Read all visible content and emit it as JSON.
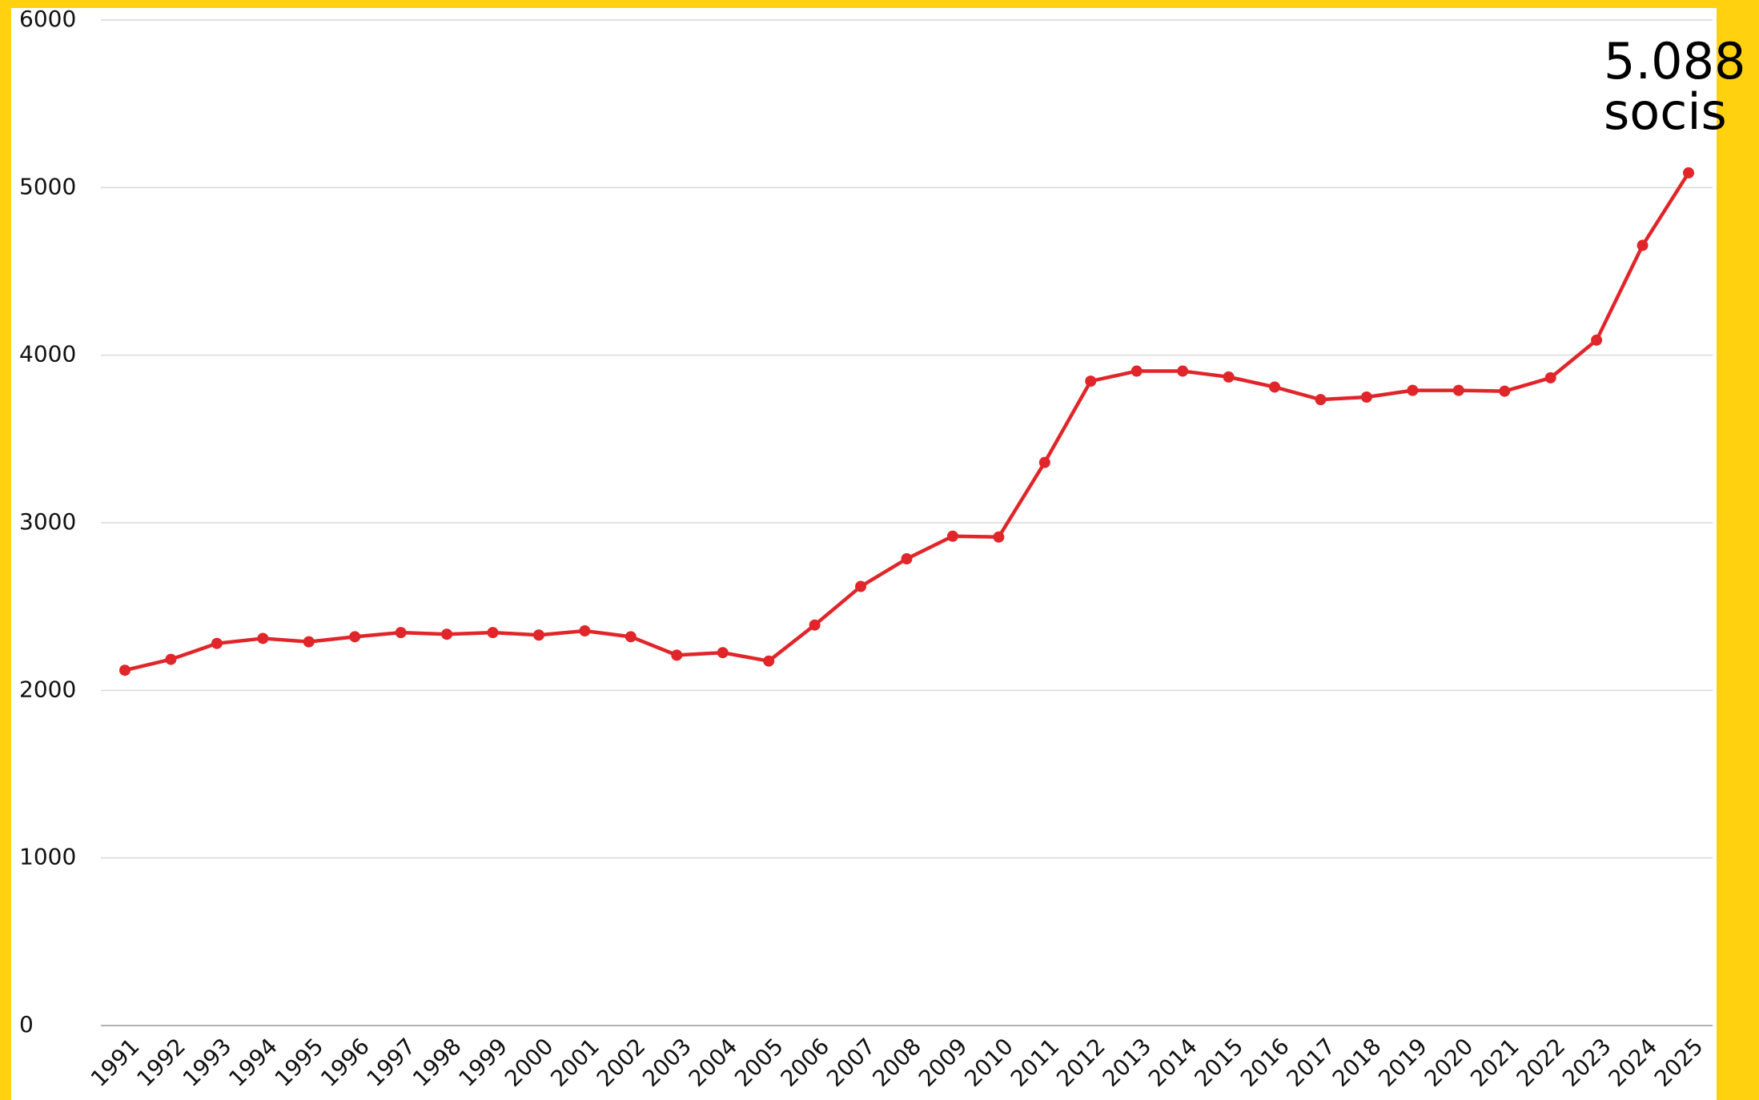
{
  "chart_data": {
    "type": "line",
    "categories": [
      "1991",
      "1992",
      "1993",
      "1994",
      "1995",
      "1996",
      "1997",
      "1998",
      "1999",
      "2000",
      "2001",
      "2002",
      "2003",
      "2004",
      "2005",
      "2006",
      "2007",
      "2008",
      "2009",
      "2010",
      "2011",
      "2012",
      "2013",
      "2014",
      "2015",
      "2016",
      "2017",
      "2018",
      "2019",
      "2020",
      "2021",
      "2022",
      "2023",
      "2024",
      "2025"
    ],
    "series": [
      {
        "color": "#e0262a",
        "values": [
          2120,
          2185,
          2280,
          2310,
          2290,
          2320,
          2345,
          2335,
          2345,
          2330,
          2355,
          2320,
          2210,
          2225,
          2175,
          2390,
          2620,
          2785,
          2920,
          2915,
          3360,
          3845,
          3905,
          3905,
          3870,
          3810,
          3735,
          3750,
          3790,
          3790,
          3785,
          3865,
          4090,
          4655,
          5088
        ]
      }
    ],
    "ylim": [
      0,
      6000
    ],
    "yticks": [
      0,
      1000,
      2000,
      3000,
      4000,
      5000,
      6000
    ],
    "grid": true,
    "annotation": [
      "5.088",
      "socis"
    ]
  }
}
